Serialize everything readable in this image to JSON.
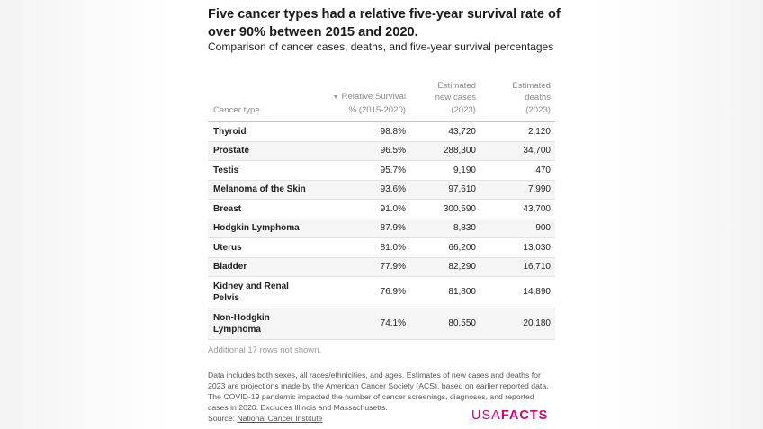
{
  "title": "Five cancer types had a relative five-year survival rate of over 90% between 2015 and 2020.",
  "subtitle": "Comparison of cancer cases, deaths, and five-year survival percentages",
  "table": {
    "headers": {
      "type": "Cancer type",
      "survival": "Relative Survival\n% (2015-2020)",
      "cases": "Estimated\nnew cases\n(2023)",
      "deaths": "Estimated\ndeaths\n(2023)"
    },
    "sort_icon": "sort-down-icon",
    "rows": [
      {
        "type": "Thyroid",
        "survival": "98.8%",
        "cases": "43,720",
        "deaths": "2,120"
      },
      {
        "type": "Prostate",
        "survival": "96.5%",
        "cases": "288,300",
        "deaths": "34,700"
      },
      {
        "type": "Testis",
        "survival": "95.7%",
        "cases": "9,190",
        "deaths": "470"
      },
      {
        "type": "Melanoma of the Skin",
        "survival": "93.6%",
        "cases": "97,610",
        "deaths": "7,990"
      },
      {
        "type": "Breast",
        "survival": "91.0%",
        "cases": "300,590",
        "deaths": "43,700"
      },
      {
        "type": "Hodgkin Lymphoma",
        "survival": "87.9%",
        "cases": "8,830",
        "deaths": "900"
      },
      {
        "type": "Uterus",
        "survival": "81.0%",
        "cases": "66,200",
        "deaths": "13,030"
      },
      {
        "type": "Bladder",
        "survival": "77.9%",
        "cases": "82,290",
        "deaths": "16,710"
      },
      {
        "type": "Kidney and Renal Pelvis",
        "survival": "76.9%",
        "cases": "81,800",
        "deaths": "14,890"
      },
      {
        "type": "Non-Hodgkin Lymphoma",
        "survival": "74.1%",
        "cases": "80,550",
        "deaths": "20,180"
      }
    ],
    "more_rows": "Additional 17 rows not shown."
  },
  "notes": "Data includes both sexes, all races/ethnicities, and ages. Estimates of new cases and deaths for 2023 are projections made by the American Cancer Society (ACS), based on earlier reported data. The COVID-19 pandemic impacted the number of cancer screenings, diagnoses, and reported cases in 2020. Excludes Illinois and Massachusetts.",
  "source": {
    "label": "Source: ",
    "link": "National Cancer Institute"
  },
  "logo": {
    "part1": "USA",
    "part2": "FACTS",
    "color": "#d3007a"
  }
}
